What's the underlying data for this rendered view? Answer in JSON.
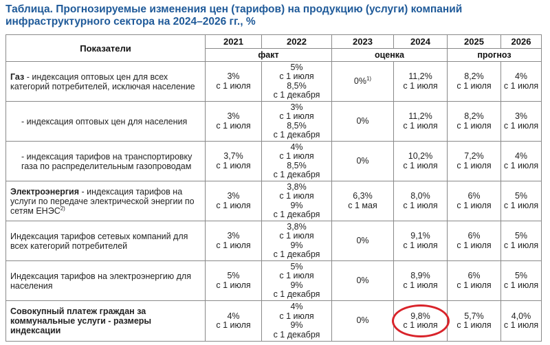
{
  "title": "Таблица. Прогнозируемые изменения цен (тарифов) на продукцию (услуги) компаний инфраструктурного сектора на 2024–2026 гг., %",
  "header": {
    "indicators_label": "Показатели",
    "years": [
      "2021",
      "2022",
      "2023",
      "2024",
      "2025",
      "2026"
    ],
    "groups": {
      "fact": "факт",
      "estimate": "оценка",
      "forecast": "прогноз"
    }
  },
  "rows": [
    {
      "bold": "Газ",
      "text": " - индексация оптовых цен для всех категорий потребителей, исключая население",
      "cells": [
        [
          "3%",
          "с 1 июля"
        ],
        [
          "5%",
          "с 1 июля",
          "8,5%",
          "с 1 декабря"
        ],
        [
          "0%"
        ],
        [
          "11,2%",
          "с 1 июля"
        ],
        [
          "8,2%",
          "с 1 июля"
        ],
        [
          "4%",
          "с 1 июля"
        ]
      ],
      "note_2023": "1)"
    },
    {
      "bold": "",
      "text": "- индексация оптовых цен для населения",
      "cells": [
        [
          "3%",
          "с 1 июля"
        ],
        [
          "3%",
          "с 1 июля",
          "8,5%",
          "с 1 декабря"
        ],
        [
          "0%"
        ],
        [
          "11,2%",
          "с 1 июля"
        ],
        [
          "8,2%",
          "с 1 июля"
        ],
        [
          "3%",
          "с 1 июля"
        ]
      ]
    },
    {
      "bold": "",
      "text": "- индексация тарифов на транспортировку газа по распределительным газопроводам",
      "cells": [
        [
          "3,7%",
          "с 1 июля"
        ],
        [
          "4%",
          "с 1 июля",
          "8,5%",
          "с 1 декабря"
        ],
        [
          "0%"
        ],
        [
          "10,2%",
          "с 1 июля"
        ],
        [
          "7,2%",
          "с 1 июля"
        ],
        [
          "4%",
          "с 1 июля"
        ]
      ]
    },
    {
      "bold": "Электроэнергия",
      "text": " - индексация тарифов на услуги по передаче электрической энергии по сетям ЕНЭС",
      "note": "2)",
      "cells": [
        [
          "3%",
          "с 1 июля"
        ],
        [
          "3,8%",
          "с 1 июля",
          "9%",
          "с 1 декабря"
        ],
        [
          "6,3%",
          "с 1 мая"
        ],
        [
          "8,0%",
          "с 1 июля"
        ],
        [
          "6%",
          "с 1 июля"
        ],
        [
          "5%",
          "с 1 июля"
        ]
      ]
    },
    {
      "bold": "",
      "text": "Индексация тарифов сетевых компаний для всех категорий потребителей",
      "cells": [
        [
          "3%",
          "с 1 июля"
        ],
        [
          "3,8%",
          "с 1 июля",
          "9%",
          "с 1 декабря"
        ],
        [
          "0%"
        ],
        [
          "9,1%",
          "с 1 июля"
        ],
        [
          "6%",
          "с 1 июля"
        ],
        [
          "5%",
          "с 1 июля"
        ]
      ]
    },
    {
      "bold": "",
      "text": "Индексация тарифов на электроэнергию для населения",
      "cells": [
        [
          "5%",
          "с 1 июля"
        ],
        [
          "5%",
          "с 1 июля",
          "9%",
          "с 1 декабря"
        ],
        [
          "0%"
        ],
        [
          "8,9%",
          "с 1 июля"
        ],
        [
          "6%",
          "с 1 июля"
        ],
        [
          "5%",
          "с 1 июля"
        ]
      ]
    },
    {
      "bold": "Совокупный платеж граждан за коммунальные услуги - размеры индексации",
      "text": "",
      "cells": [
        [
          "4%",
          "с 1 июля"
        ],
        [
          "4%",
          "с 1 июля",
          "9%",
          "с 1 декабря"
        ],
        [
          "0%"
        ],
        [
          "9,8%",
          "с 1 июля"
        ],
        [
          "5,7%",
          "с 1 июля"
        ],
        [
          "4,0%",
          "с 1 июля"
        ]
      ],
      "highlight_2024": true
    }
  ],
  "colors": {
    "title": "#1f5a99",
    "highlight_ring": "#d9232a",
    "border": "#888888"
  }
}
